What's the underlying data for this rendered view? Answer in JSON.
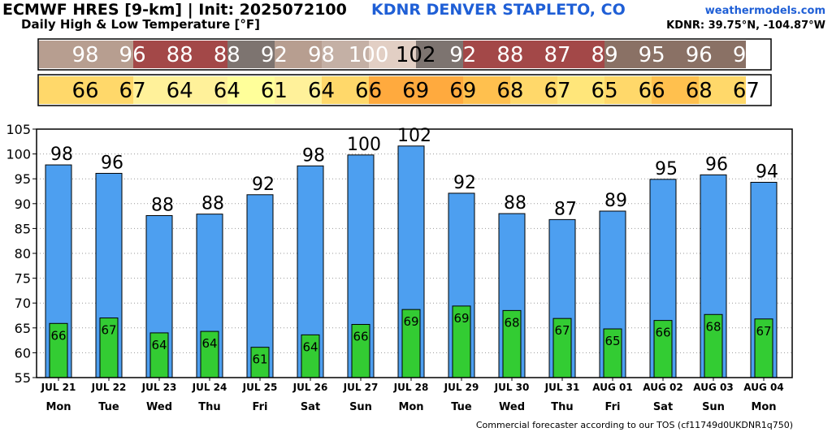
{
  "header": {
    "title": "ECMWF HRES [9-km] | Init: 2025072100",
    "subtitle": "Daily High & Low Temperature [°F]",
    "station": "KDNR DENVER STAPLETO, CO",
    "site": "weathermodels.com",
    "coords": "KDNR: 39.75°N, -104.87°W"
  },
  "footer": "Commercial forecaster according to our TOS (cf11749d0UKDNR1q750)",
  "colors": {
    "high_bar": "#4d9ff0",
    "low_bar": "#33cc33",
    "high_strip": [
      "#b79e90",
      "#b79e90",
      "#a34848",
      "#a34848",
      "#7d7470",
      "#b79e90",
      "#c4b0a5",
      "#e2cfc4",
      "#7d7470",
      "#a34848",
      "#a34848",
      "#a34848",
      "#8a7165",
      "#8a7165",
      "#8a7165"
    ],
    "low_strip": [
      "#ffd86a",
      "#ffd86a",
      "#fff19a",
      "#fff19a",
      "#ffff9a",
      "#fff19a",
      "#ffd86a",
      "#ffaa3e",
      "#ffaa3e",
      "#ffc04e",
      "#ffd86a",
      "#ffe67a",
      "#ffd86a",
      "#ffc04e",
      "#ffd86a"
    ]
  },
  "chart_data": {
    "type": "bar",
    "categories": [
      "JUL 21",
      "JUL 22",
      "JUL 23",
      "JUL 24",
      "JUL 25",
      "JUL 26",
      "JUL 27",
      "JUL 28",
      "JUL 29",
      "JUL 30",
      "JUL 31",
      "AUG 01",
      "AUG 02",
      "AUG 03",
      "AUG 04"
    ],
    "weekdays": [
      "Mon",
      "Tue",
      "Wed",
      "Thu",
      "Fri",
      "Sat",
      "Sun",
      "Mon",
      "Tue",
      "Wed",
      "Thu",
      "Fri",
      "Sat",
      "Sun",
      "Mon"
    ],
    "series": [
      {
        "name": "High",
        "values": [
          97.8,
          96.1,
          87.6,
          87.9,
          91.8,
          97.6,
          99.8,
          101.6,
          92.1,
          88.0,
          86.8,
          88.5,
          94.9,
          95.8,
          94.3
        ],
        "labels": [
          "98",
          "96",
          "88",
          "88",
          "92",
          "98",
          "100",
          "102",
          "92",
          "88",
          "87",
          "89",
          "95",
          "96",
          "94"
        ]
      },
      {
        "name": "Low",
        "values": [
          65.9,
          67.0,
          64.0,
          64.3,
          61.1,
          63.6,
          65.7,
          68.7,
          69.4,
          68.5,
          66.9,
          64.8,
          66.5,
          67.7,
          66.8
        ],
        "labels": [
          "66",
          "67",
          "64",
          "64",
          "61",
          "64",
          "66",
          "69",
          "69",
          "68",
          "67",
          "65",
          "66",
          "68",
          "67"
        ]
      }
    ],
    "ylim": [
      55,
      105
    ],
    "yticks": [
      55,
      60,
      65,
      70,
      75,
      80,
      85,
      90,
      95,
      100,
      105
    ],
    "grid": true
  }
}
